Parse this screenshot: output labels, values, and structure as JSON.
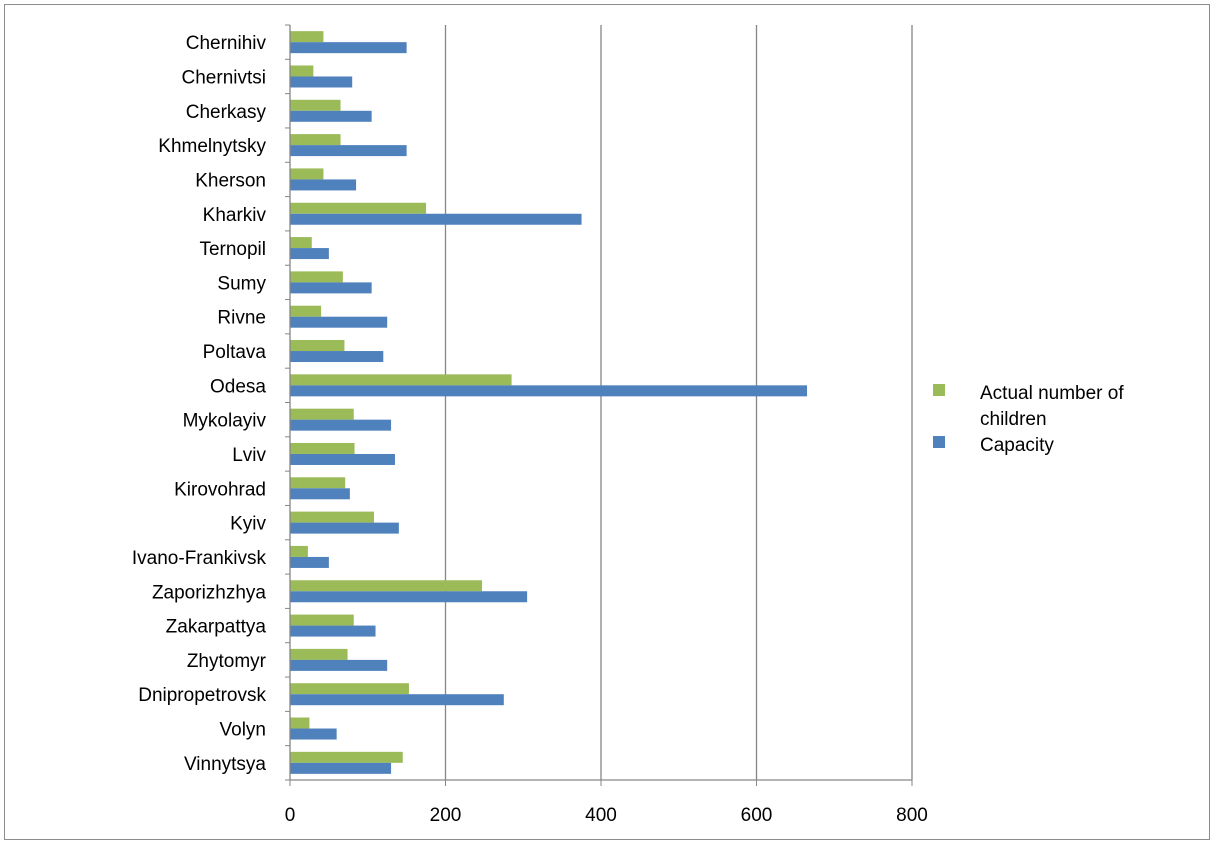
{
  "chart_data": {
    "type": "bar",
    "orientation": "horizontal",
    "categories": [
      "Chernihiv",
      "Chernivtsi",
      "Cherkasy",
      "Khmelnytsky",
      "Kherson",
      "Kharkiv",
      "Ternopil",
      "Sumy",
      "Rivne",
      "Poltava",
      "Odesa",
      "Mykolayiv",
      "Lviv",
      "Kirovohrad",
      "Kyiv",
      "Ivano-Frankivsk",
      "Zaporizhzhya",
      "Zakarpattya",
      "Zhytomyr",
      "Dnipropetrovsk",
      "Volyn",
      "Vinnytsya"
    ],
    "series": [
      {
        "name": "Actual number of children",
        "color": "#9bbb59",
        "values": [
          43,
          30,
          65,
          65,
          43,
          175,
          28,
          68,
          40,
          70,
          285,
          82,
          83,
          71,
          108,
          23,
          247,
          82,
          74,
          153,
          25,
          145
        ]
      },
      {
        "name": "Capacity",
        "color": "#4f81bd",
        "values": [
          150,
          80,
          105,
          150,
          85,
          375,
          50,
          105,
          125,
          120,
          665,
          130,
          135,
          77,
          140,
          50,
          305,
          110,
          125,
          275,
          60,
          130
        ]
      }
    ],
    "xlim": [
      0,
      800
    ],
    "xticks": [
      0,
      200,
      400,
      600,
      800
    ],
    "grid": true,
    "legend_position": "right",
    "legend_lines": [
      [
        "Actual number of",
        "children"
      ],
      [
        "Capacity"
      ]
    ]
  }
}
